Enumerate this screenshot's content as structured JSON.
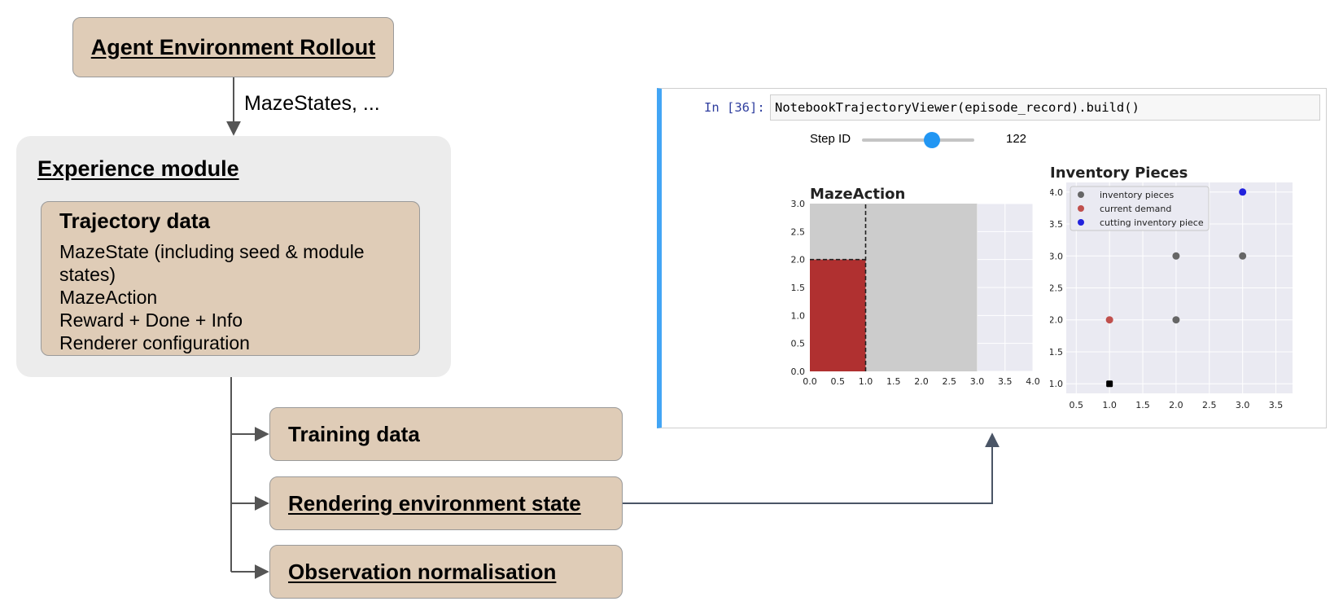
{
  "flow": {
    "top_box": "Agent Environment Rollout",
    "edge_label": "MazeStates, ...",
    "experience_module": {
      "title": "Experience module",
      "trajectory": {
        "title": "Trajectory data",
        "lines": [
          "MazeState (including seed & module",
          "states)",
          "MazeAction",
          "Reward + Done + Info",
          "Renderer configuration"
        ]
      }
    },
    "outputs": {
      "training": "Training data",
      "rendering": "Rendering environment state",
      "normalisation": "Observation normalisation"
    }
  },
  "notebook": {
    "prompt": "In [36]:",
    "code": "NotebookTrajectoryViewer(episode_record).build()",
    "slider": {
      "label": "Step ID",
      "value": "122",
      "fraction": 0.62
    }
  },
  "colors": {
    "box_fill": "#dfccb7",
    "module_fill": "#ececec",
    "connector": "#555555",
    "nb_connector": "#4a5566",
    "accent": "#42a5f5",
    "demand_red": "#b03030"
  },
  "chart_data": [
    {
      "type": "bar",
      "title": "MazeAction",
      "xlim": [
        0,
        4.0
      ],
      "ylim": [
        0,
        3.0
      ],
      "xticks": [
        "0.0",
        "0.5",
        "1.0",
        "1.5",
        "2.0",
        "2.5",
        "3.0",
        "3.5",
        "4.0"
      ],
      "yticks": [
        "0.0",
        "0.5",
        "1.0",
        "1.5",
        "2.0",
        "2.5",
        "3.0"
      ],
      "rects": [
        {
          "x0": 0,
          "y0": 0,
          "x1": 3.0,
          "y1": 3.0,
          "color": "#cccccc"
        },
        {
          "x0": 0,
          "y0": 0,
          "x1": 1.0,
          "y1": 2.0,
          "color": "#b03030"
        }
      ],
      "dashed_lines": [
        {
          "x0": 1.0,
          "y0": 0,
          "x1": 1.0,
          "y1": 3.0
        },
        {
          "x0": 0,
          "y0": 2.0,
          "x1": 1.0,
          "y1": 2.0
        }
      ],
      "grid": true
    },
    {
      "type": "scatter",
      "title": "Inventory Pieces",
      "xlim": [
        0.35,
        3.75
      ],
      "ylim": [
        0.85,
        4.15
      ],
      "xticks": [
        "0.5",
        "1.0",
        "1.5",
        "2.0",
        "2.5",
        "3.0",
        "3.5"
      ],
      "yticks": [
        "1.0",
        "1.5",
        "2.0",
        "2.5",
        "3.0",
        "3.5",
        "4.0"
      ],
      "legend_position": "top-left",
      "grid": true,
      "series": [
        {
          "name": "inventory pieces",
          "color": "#666666",
          "points": [
            [
              2,
              3
            ],
            [
              3,
              3
            ],
            [
              2,
              2
            ]
          ]
        },
        {
          "name": "current demand",
          "color": "#c0504d",
          "points": [
            [
              1,
              2
            ]
          ]
        },
        {
          "name": "cutting inventory piece",
          "color": "#2222dd",
          "points": [
            [
              3,
              4
            ]
          ]
        }
      ],
      "extra_points": [
        {
          "x": 1,
          "y": 1,
          "color": "#000000",
          "marker": "square"
        }
      ]
    }
  ]
}
